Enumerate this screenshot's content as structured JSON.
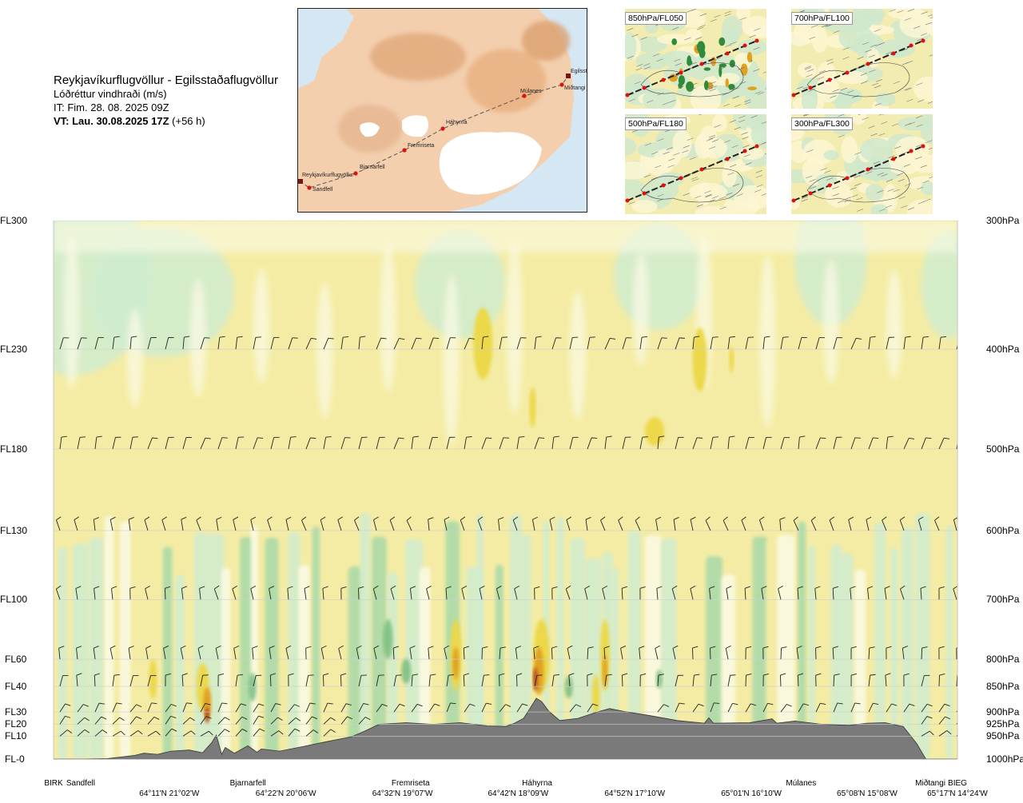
{
  "header": {
    "route_title": "Reykjavíkurflugvöllur - Egilsstaðaflugvöllur",
    "variable": "Lóðréttur vindhraði (m/s)",
    "issue_time": "IT: Fim. 28. 08. 2025 09Z",
    "valid_time_bold": "VT: Lau. 30.08.2025 17Z",
    "valid_time_offset": "(+56 h)"
  },
  "map": {
    "waypoints": [
      "Reykjavíkurflugvöllur",
      "Sandfell",
      "Bjarnarfell",
      "Fremriseta",
      "Háhyrna",
      "Múlanes",
      "Egilsst",
      "Miðtangi"
    ]
  },
  "mini_maps": [
    {
      "label": "850hPa/FL050"
    },
    {
      "label": "700hPa/FL100"
    },
    {
      "label": "500hPa/FL180"
    },
    {
      "label": "300hPa/FL300"
    }
  ],
  "chart_data": {
    "type": "heatmap",
    "title": "Lóðréttur vindhraði (m/s)",
    "description_note": "",
    "y_left_labels": [
      {
        "label": "FL300",
        "pressure_hpa": 300
      },
      {
        "label": "FL230",
        "pressure_hpa": 400
      },
      {
        "label": "FL180",
        "pressure_hpa": 500
      },
      {
        "label": "FL130",
        "pressure_hpa": 600
      },
      {
        "label": "FL100",
        "pressure_hpa": 700
      },
      {
        "label": "FL60",
        "pressure_hpa": 800
      },
      {
        "label": "FL40",
        "pressure_hpa": 850
      },
      {
        "label": "FL30",
        "pressure_hpa": 900
      },
      {
        "label": "FL20",
        "pressure_hpa": 925
      },
      {
        "label": "FL10",
        "pressure_hpa": 950
      },
      {
        "label": "FL-0",
        "pressure_hpa": 1000
      }
    ],
    "y_right_labels": [
      "300hPa",
      "400hPa",
      "500hPa",
      "600hPa",
      "700hPa",
      "800hPa",
      "850hPa",
      "900hPa",
      "925hPa",
      "950hPa",
      "1000hPa"
    ],
    "x_waypoints": [
      {
        "label": "BIRK",
        "pos": 0.0
      },
      {
        "label": "Sandfell",
        "pos": 0.03
      },
      {
        "label": "Bjarnarfell",
        "pos": 0.215
      },
      {
        "label": "Fremriseta",
        "pos": 0.395
      },
      {
        "label": "Háhyrna",
        "pos": 0.535
      },
      {
        "label": "Múlanes",
        "pos": 0.827
      },
      {
        "label": "Miðtangi",
        "pos": 0.97
      },
      {
        "label": "BIEG",
        "pos": 1.0
      }
    ],
    "x_coords": [
      {
        "label": "64°11'N 21°02'W",
        "pos": 0.128
      },
      {
        "label": "64°22'N 20°06'W",
        "pos": 0.257
      },
      {
        "label": "64°32'N 19°07'W",
        "pos": 0.386
      },
      {
        "label": "64°42'N 18°09'W",
        "pos": 0.514
      },
      {
        "label": "64°52'N 17°10'W",
        "pos": 0.643
      },
      {
        "label": "65°01'N 16°10'W",
        "pos": 0.772
      },
      {
        "label": "65°08'N 15°08'W",
        "pos": 0.9
      },
      {
        "label": "65°17'N 14°24'W",
        "pos": 1.0
      }
    ],
    "colors": {
      "strong_down": "#6fb97a",
      "mod_down": "#a8d9a8",
      "weak_down": "#d0ecd0",
      "neutral": "#fbfbe6",
      "weak_up": "#f4eca4",
      "mod_up": "#ecd84a",
      "strong_up": "#e0a020",
      "very_strong_up": "#b8501a",
      "terrain": "#7a7a7a"
    },
    "terrain_profile_m": [
      [
        0.0,
        30
      ],
      [
        0.03,
        60
      ],
      [
        0.06,
        120
      ],
      [
        0.09,
        180
      ],
      [
        0.1,
        220
      ],
      [
        0.115,
        200
      ],
      [
        0.13,
        260
      ],
      [
        0.15,
        280
      ],
      [
        0.165,
        230
      ],
      [
        0.175,
        420
      ],
      [
        0.18,
        560
      ],
      [
        0.186,
        200
      ],
      [
        0.19,
        330
      ],
      [
        0.2,
        220
      ],
      [
        0.215,
        360
      ],
      [
        0.225,
        240
      ],
      [
        0.23,
        300
      ],
      [
        0.25,
        260
      ],
      [
        0.28,
        360
      ],
      [
        0.3,
        430
      ],
      [
        0.33,
        530
      ],
      [
        0.345,
        640
      ],
      [
        0.36,
        760
      ],
      [
        0.39,
        790
      ],
      [
        0.42,
        760
      ],
      [
        0.45,
        790
      ],
      [
        0.48,
        730
      ],
      [
        0.5,
        720
      ],
      [
        0.51,
        780
      ],
      [
        0.52,
        870
      ],
      [
        0.527,
        1050
      ],
      [
        0.534,
        1240
      ],
      [
        0.54,
        1180
      ],
      [
        0.548,
        1000
      ],
      [
        0.56,
        830
      ],
      [
        0.58,
        870
      ],
      [
        0.6,
        980
      ],
      [
        0.615,
        1050
      ],
      [
        0.63,
        1000
      ],
      [
        0.66,
        920
      ],
      [
        0.69,
        830
      ],
      [
        0.72,
        780
      ],
      [
        0.725,
        880
      ],
      [
        0.73,
        780
      ],
      [
        0.77,
        790
      ],
      [
        0.795,
        860
      ],
      [
        0.8,
        780
      ],
      [
        0.82,
        820
      ],
      [
        0.85,
        760
      ],
      [
        0.88,
        740
      ],
      [
        0.9,
        780
      ],
      [
        0.92,
        790
      ],
      [
        0.94,
        720
      ],
      [
        0.955,
        400
      ],
      [
        0.965,
        50
      ],
      [
        0.98,
        30
      ],
      [
        1.0,
        40
      ]
    ]
  }
}
